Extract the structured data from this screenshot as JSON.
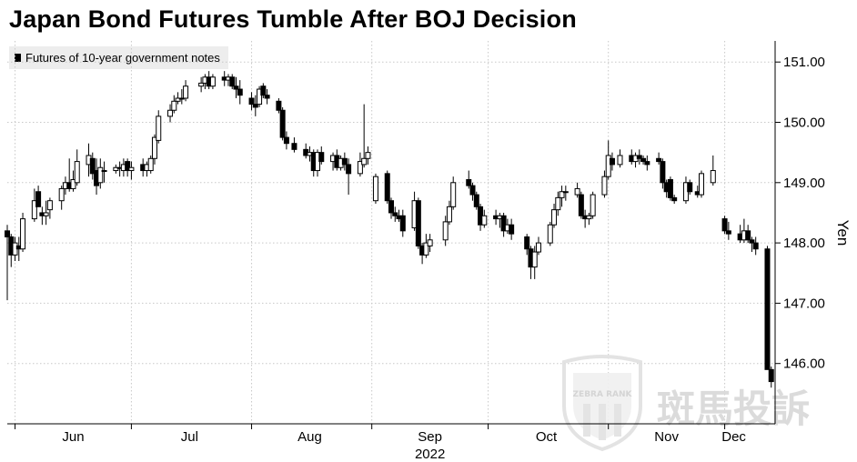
{
  "chart_data": {
    "type": "candlestick",
    "title": "Japan Bond Futures Tumble After BOJ Decision",
    "legend": [
      {
        "label": "Futures of 10-year government notes",
        "color": "#000000"
      }
    ],
    "legend_position": "top-left",
    "ylabel": "Yen",
    "y_axis_side": "right",
    "ylim": [
      145.0,
      151.35
    ],
    "yticks": [
      146.0,
      147.0,
      148.0,
      149.0,
      150.0,
      151.0
    ],
    "ytick_labels": [
      "146.00",
      "147.00",
      "148.00",
      "149.00",
      "150.00",
      "151.00"
    ],
    "xtick_labels": [
      "Jun",
      "Jul",
      "Aug",
      "Sep",
      "Oct",
      "Nov",
      "Dec"
    ],
    "xtick_dates": [
      "2022-06-01",
      "2022-07-01",
      "2022-08-01",
      "2022-09-01",
      "2022-10-01",
      "2022-11-01",
      "2022-12-01"
    ],
    "year_label": "2022",
    "grid": "dotted",
    "up_color": "#ffffff",
    "down_color": "#000000",
    "candles": [
      [
        "2022-05-30",
        148.2,
        148.3,
        147.05,
        148.1
      ],
      [
        "2022-05-31",
        148.1,
        148.15,
        147.6,
        147.8
      ],
      [
        "2022-06-01",
        147.8,
        148.1,
        147.7,
        148.0
      ],
      [
        "2022-06-02",
        147.95,
        148.1,
        147.7,
        147.9
      ],
      [
        "2022-06-03",
        147.9,
        148.5,
        147.85,
        148.4
      ],
      [
        "2022-06-06",
        148.4,
        148.9,
        148.35,
        148.7
      ],
      [
        "2022-06-07",
        148.85,
        148.95,
        148.6,
        148.6
      ],
      [
        "2022-06-08",
        148.5,
        148.6,
        148.3,
        148.45
      ],
      [
        "2022-06-09",
        148.45,
        148.7,
        148.3,
        148.5
      ],
      [
        "2022-06-10",
        148.55,
        148.75,
        148.4,
        148.7
      ],
      [
        "2022-06-13",
        148.7,
        148.95,
        148.55,
        148.9
      ],
      [
        "2022-06-14",
        148.9,
        149.1,
        148.8,
        149.0
      ],
      [
        "2022-06-15",
        149.0,
        149.4,
        148.85,
        148.9
      ],
      [
        "2022-06-16",
        148.9,
        149.2,
        148.85,
        149.05
      ],
      [
        "2022-06-17",
        149.0,
        149.55,
        148.95,
        149.35
      ],
      [
        "2022-06-20",
        149.3,
        149.65,
        149.1,
        149.45
      ],
      [
        "2022-06-21",
        149.4,
        149.5,
        149.05,
        149.15
      ],
      [
        "2022-06-22",
        149.2,
        149.4,
        148.8,
        148.95
      ],
      [
        "2022-06-23",
        149.0,
        149.4,
        148.9,
        149.25
      ],
      [
        "2022-06-24",
        149.2,
        149.35,
        149.0,
        149.2
      ],
      [
        "2022-06-27",
        149.2,
        149.3,
        149.15,
        149.25
      ],
      [
        "2022-06-28",
        149.25,
        149.35,
        149.1,
        149.25
      ],
      [
        "2022-06-29",
        149.2,
        149.4,
        149.1,
        149.3
      ],
      [
        "2022-06-30",
        149.35,
        149.4,
        149.1,
        149.2
      ],
      [
        "2022-07-01",
        149.2,
        149.35,
        149.05,
        149.25
      ],
      [
        "2022-07-04",
        149.3,
        149.4,
        149.1,
        149.2
      ],
      [
        "2022-07-05",
        149.2,
        149.35,
        149.1,
        149.3
      ],
      [
        "2022-07-06",
        149.2,
        149.45,
        149.15,
        149.4
      ],
      [
        "2022-07-07",
        149.4,
        149.8,
        149.3,
        149.75
      ],
      [
        "2022-07-08",
        149.7,
        150.2,
        149.65,
        150.1
      ],
      [
        "2022-07-11",
        150.1,
        150.3,
        150.0,
        150.2
      ],
      [
        "2022-07-12",
        150.2,
        150.45,
        150.15,
        150.35
      ],
      [
        "2022-07-13",
        150.35,
        150.5,
        150.3,
        150.4
      ],
      [
        "2022-07-14",
        150.4,
        150.55,
        150.3,
        150.4
      ],
      [
        "2022-07-15",
        150.4,
        150.7,
        150.35,
        150.6
      ],
      [
        "2022-07-19",
        150.6,
        150.75,
        150.5,
        150.65
      ],
      [
        "2022-07-20",
        150.65,
        150.8,
        150.55,
        150.75
      ],
      [
        "2022-07-21",
        150.75,
        150.85,
        150.55,
        150.6
      ],
      [
        "2022-07-22",
        150.6,
        150.8,
        150.55,
        150.75
      ],
      [
        "2022-07-25",
        150.75,
        150.85,
        150.6,
        150.7
      ],
      [
        "2022-07-26",
        150.7,
        150.8,
        150.6,
        150.75
      ],
      [
        "2022-07-27",
        150.75,
        150.8,
        150.55,
        150.6
      ],
      [
        "2022-07-28",
        150.6,
        150.75,
        150.4,
        150.55
      ],
      [
        "2022-07-29",
        150.55,
        150.7,
        150.3,
        150.45
      ],
      [
        "2022-08-01",
        150.4,
        150.5,
        150.2,
        150.3
      ],
      [
        "2022-08-02",
        150.3,
        150.45,
        150.1,
        150.25
      ],
      [
        "2022-08-03",
        150.3,
        150.6,
        150.25,
        150.55
      ],
      [
        "2022-08-04",
        150.6,
        150.65,
        150.4,
        150.45
      ],
      [
        "2022-08-05",
        150.45,
        150.55,
        150.3,
        150.4
      ],
      [
        "2022-08-08",
        150.35,
        150.4,
        150.15,
        150.2
      ],
      [
        "2022-08-09",
        150.2,
        150.25,
        149.7,
        149.75
      ],
      [
        "2022-08-10",
        149.75,
        149.85,
        149.55,
        149.65
      ],
      [
        "2022-08-12",
        149.65,
        149.75,
        149.5,
        149.55
      ],
      [
        "2022-08-15",
        149.55,
        149.65,
        149.4,
        149.45
      ],
      [
        "2022-08-16",
        149.45,
        149.6,
        149.35,
        149.5
      ],
      [
        "2022-08-17",
        149.5,
        149.55,
        149.1,
        149.2
      ],
      [
        "2022-08-18",
        149.2,
        149.55,
        149.1,
        149.5
      ],
      [
        "2022-08-19",
        149.5,
        149.6,
        149.3,
        149.35
      ],
      [
        "2022-08-22",
        149.35,
        149.5,
        149.2,
        149.45
      ],
      [
        "2022-08-23",
        149.45,
        149.55,
        149.2,
        149.25
      ],
      [
        "2022-08-24",
        149.25,
        149.45,
        149.2,
        149.4
      ],
      [
        "2022-08-25",
        149.4,
        149.5,
        149.2,
        149.3
      ],
      [
        "2022-08-26",
        149.3,
        149.4,
        148.8,
        149.15
      ],
      [
        "2022-08-29",
        149.15,
        149.5,
        149.1,
        149.35
      ],
      [
        "2022-08-30",
        149.3,
        150.3,
        149.25,
        149.4
      ],
      [
        "2022-08-31",
        149.4,
        149.6,
        149.3,
        149.5
      ],
      [
        "2022-09-02",
        148.7,
        149.15,
        148.65,
        149.1
      ],
      [
        "2022-09-05",
        149.15,
        149.2,
        148.65,
        148.7
      ],
      [
        "2022-09-06",
        148.7,
        148.75,
        148.4,
        148.5
      ],
      [
        "2022-09-07",
        148.5,
        148.6,
        148.35,
        148.45
      ],
      [
        "2022-09-08",
        148.45,
        148.55,
        148.35,
        148.4
      ],
      [
        "2022-09-09",
        148.45,
        148.55,
        148.1,
        148.2
      ],
      [
        "2022-09-12",
        148.25,
        148.85,
        148.2,
        148.7
      ],
      [
        "2022-09-13",
        148.7,
        148.75,
        147.9,
        147.95
      ],
      [
        "2022-09-14",
        147.95,
        148.0,
        147.65,
        147.8
      ],
      [
        "2022-09-15",
        147.8,
        148.15,
        147.75,
        148.0
      ],
      [
        "2022-09-16",
        147.95,
        148.15,
        147.85,
        148.05
      ],
      [
        "2022-09-20",
        148.05,
        148.45,
        147.95,
        148.35
      ],
      [
        "2022-09-21",
        148.35,
        148.7,
        148.3,
        148.6
      ],
      [
        "2022-09-22",
        148.6,
        149.1,
        148.55,
        149.0
      ],
      [
        "2022-09-26",
        149.05,
        149.2,
        148.9,
        148.95
      ],
      [
        "2022-09-27",
        148.95,
        149.0,
        148.7,
        148.8
      ],
      [
        "2022-09-28",
        148.8,
        148.85,
        148.55,
        148.6
      ],
      [
        "2022-09-29",
        148.6,
        148.65,
        148.2,
        148.3
      ],
      [
        "2022-09-30",
        148.3,
        148.55,
        148.25,
        148.45
      ],
      [
        "2022-10-03",
        148.45,
        148.55,
        148.3,
        148.4
      ],
      [
        "2022-10-04",
        148.4,
        148.5,
        148.25,
        148.45
      ],
      [
        "2022-10-05",
        148.45,
        148.5,
        148.1,
        148.2
      ],
      [
        "2022-10-06",
        148.2,
        148.4,
        148.15,
        148.3
      ],
      [
        "2022-10-07",
        148.3,
        148.4,
        148.05,
        148.15
      ],
      [
        "2022-10-11",
        148.1,
        148.15,
        147.8,
        147.9
      ],
      [
        "2022-10-12",
        147.9,
        147.95,
        147.4,
        147.6
      ],
      [
        "2022-10-13",
        147.6,
        147.95,
        147.4,
        147.85
      ],
      [
        "2022-10-14",
        147.85,
        148.1,
        147.8,
        148.0
      ],
      [
        "2022-10-17",
        148.0,
        148.35,
        147.95,
        148.3
      ],
      [
        "2022-10-18",
        148.3,
        148.65,
        148.25,
        148.55
      ],
      [
        "2022-10-19",
        148.55,
        148.85,
        148.45,
        148.75
      ],
      [
        "2022-10-20",
        148.75,
        148.95,
        148.6,
        148.85
      ],
      [
        "2022-10-21",
        148.85,
        148.95,
        148.7,
        148.85
      ],
      [
        "2022-10-24",
        148.8,
        149.0,
        148.75,
        148.9
      ],
      [
        "2022-10-25",
        148.8,
        148.85,
        148.4,
        148.45
      ],
      [
        "2022-10-26",
        148.45,
        148.55,
        148.25,
        148.4
      ],
      [
        "2022-10-27",
        148.4,
        148.5,
        148.3,
        148.45
      ],
      [
        "2022-10-28",
        148.45,
        148.85,
        148.4,
        148.8
      ],
      [
        "2022-10-31",
        148.8,
        149.2,
        148.75,
        149.1
      ],
      [
        "2022-11-01",
        149.1,
        149.7,
        149.05,
        149.45
      ],
      [
        "2022-11-02",
        149.4,
        149.5,
        149.2,
        149.3
      ],
      [
        "2022-11-04",
        149.3,
        149.55,
        149.25,
        149.45
      ],
      [
        "2022-11-07",
        149.45,
        149.55,
        149.3,
        149.35
      ],
      [
        "2022-11-08",
        149.35,
        149.5,
        149.25,
        149.45
      ],
      [
        "2022-11-09",
        149.45,
        149.55,
        149.3,
        149.4
      ],
      [
        "2022-11-10",
        149.4,
        149.45,
        149.3,
        149.35
      ],
      [
        "2022-11-11",
        149.35,
        149.45,
        149.2,
        149.3
      ],
      [
        "2022-11-14",
        149.4,
        149.5,
        149.3,
        149.35
      ],
      [
        "2022-11-15",
        149.35,
        149.4,
        148.9,
        149.0
      ],
      [
        "2022-11-16",
        149.0,
        149.05,
        148.75,
        148.85
      ],
      [
        "2022-11-17",
        149.05,
        149.1,
        148.7,
        148.75
      ],
      [
        "2022-11-18",
        148.75,
        148.8,
        148.65,
        148.7
      ],
      [
        "2022-11-21",
        148.7,
        149.1,
        148.65,
        149.0
      ],
      [
        "2022-11-22",
        149.0,
        149.05,
        148.8,
        148.85
      ],
      [
        "2022-11-24",
        148.85,
        148.95,
        148.75,
        148.8
      ],
      [
        "2022-11-25",
        148.8,
        149.2,
        148.75,
        149.15
      ],
      [
        "2022-11-28",
        149.0,
        149.45,
        148.95,
        149.2
      ],
      [
        "2022-12-01",
        148.4,
        148.45,
        148.15,
        148.2
      ],
      [
        "2022-12-02",
        148.2,
        148.35,
        148.05,
        148.15
      ],
      [
        "2022-12-05",
        148.15,
        148.3,
        148.0,
        148.05
      ],
      [
        "2022-12-06",
        148.05,
        148.4,
        148.0,
        148.2
      ],
      [
        "2022-12-07",
        148.2,
        148.3,
        148.0,
        148.05
      ],
      [
        "2022-12-08",
        148.05,
        148.1,
        147.85,
        148.0
      ],
      [
        "2022-12-09",
        148.0,
        148.1,
        147.8,
        147.9
      ],
      [
        "2022-12-12",
        147.9,
        147.95,
        145.9,
        145.9
      ],
      [
        "2022-12-13",
        145.9,
        145.95,
        145.6,
        145.7
      ]
    ]
  },
  "watermark": {
    "shield_text": "ZEBRA RANK",
    "text": "斑馬投訴"
  }
}
